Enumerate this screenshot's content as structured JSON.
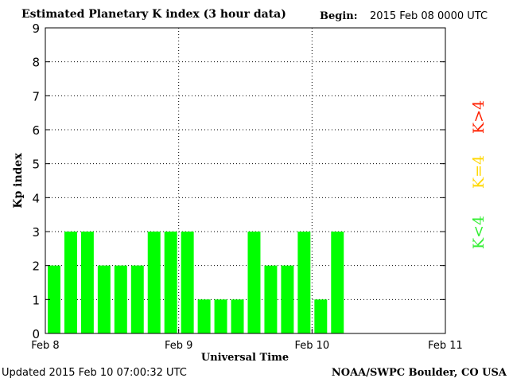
{
  "header": {
    "title": "Estimated Planetary K index (3 hour data)",
    "begin_label": "Begin:",
    "begin_value": "2015 Feb 08 0000 UTC"
  },
  "footer": {
    "updated": "Updated 2015 Feb 10 07:00:32 UTC",
    "credit": "NOAA/SWPC Boulder, CO USA"
  },
  "legend": [
    {
      "label": "K>4",
      "color": "#ff2000"
    },
    {
      "label": "K=4",
      "color": "#ffd700"
    },
    {
      "label": "K<4",
      "color": "#33ee33"
    }
  ],
  "chart_data": {
    "type": "bar",
    "title": "Estimated Planetary K index (3 hour data)",
    "xlabel": "Universal Time",
    "ylabel": "Kp index",
    "ylim": [
      0,
      9
    ],
    "yticks": [
      0,
      1,
      2,
      3,
      4,
      5,
      6,
      7,
      8,
      9
    ],
    "xtick_labels": [
      "Feb 8",
      "Feb 9",
      "Feb 10",
      "Feb 11"
    ],
    "slots_total": 24,
    "grid": "dotted",
    "bar_color": "#00ff00",
    "values": [
      2,
      3,
      3,
      2,
      2,
      2,
      3,
      3,
      3,
      1,
      1,
      1,
      3,
      2,
      2,
      3,
      1,
      3
    ]
  }
}
